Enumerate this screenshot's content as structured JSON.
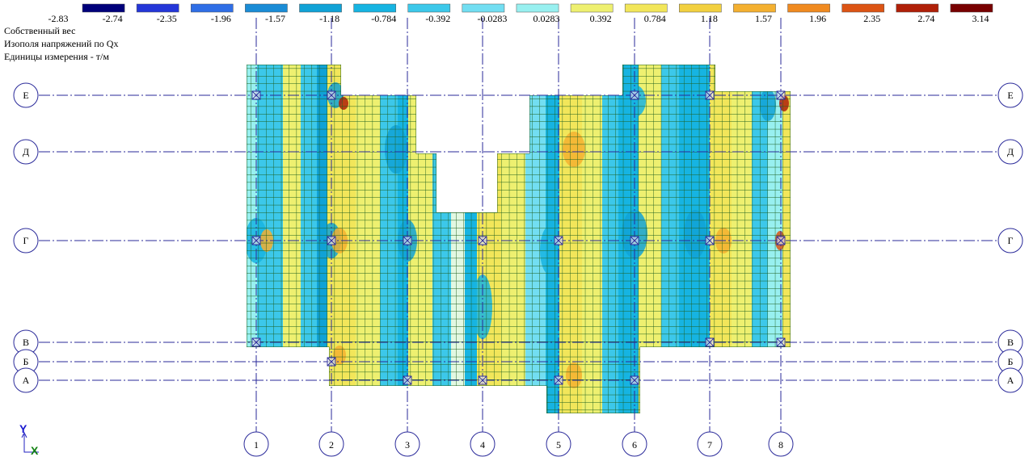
{
  "header": {
    "lines": [
      "Собственный вес",
      "Изополя напряжений по Qx",
      "Единицы измерения - т/м"
    ]
  },
  "legend": {
    "labels": [
      "-2.83",
      "-2.74",
      "-2.35",
      "-1.96",
      "-1.57",
      "-1.18",
      "-0.784",
      "-0.392",
      "-0.0283",
      "0.0283",
      "0.392",
      "0.784",
      "1.18",
      "1.57",
      "1.96",
      "2.35",
      "2.74",
      "3.14"
    ],
    "colors": [
      "#00007a",
      "#2436d8",
      "#2f6ee6",
      "#1a8cd6",
      "#10a2d6",
      "#16b4e2",
      "#3cc8ea",
      "#72def2",
      "#98f0f0",
      "#e2f8e2",
      "#eef070",
      "#f2e65a",
      "#f2d040",
      "#f4b030",
      "#f08a20",
      "#dc5414",
      "#b02008",
      "#780000"
    ]
  },
  "grid": {
    "rows": [
      "Е",
      "Д",
      "Г",
      "В",
      "Б",
      "А"
    ],
    "columns": [
      "1",
      "2",
      "3",
      "4",
      "5",
      "6",
      "7",
      "8"
    ]
  },
  "axes": {
    "y": "Y",
    "x": "X"
  }
}
